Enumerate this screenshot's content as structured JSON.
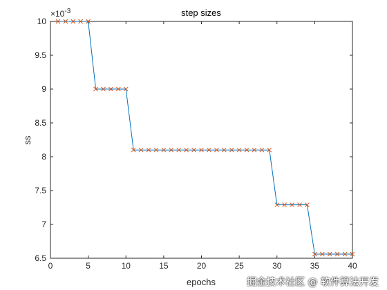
{
  "watermark": "掘金技术社区 @ 软件算法开发",
  "chart_data": {
    "type": "line",
    "title": "step sizes",
    "xlabel": "epochs",
    "ylabel": "ss",
    "y_exponent_label": "×10",
    "y_exponent_power": "-3",
    "xlim": [
      0,
      40
    ],
    "ylim": [
      6.5,
      10
    ],
    "xticks": [
      0,
      5,
      10,
      15,
      20,
      25,
      30,
      35,
      40
    ],
    "yticks": [
      6.5,
      7,
      7.5,
      8,
      8.5,
      9,
      9.5,
      10
    ],
    "grid": false,
    "line_color": "#0072bd",
    "marker_color": "#d95319",
    "marker": "x",
    "series": [
      {
        "x": [
          1,
          2,
          3,
          4,
          5,
          6,
          7,
          8,
          9,
          10,
          11,
          12,
          13,
          14,
          15,
          16,
          17,
          18,
          19,
          20,
          21,
          22,
          23,
          24,
          25,
          26,
          27,
          28,
          29,
          30,
          31,
          32,
          33,
          34,
          35,
          36,
          37,
          38,
          39,
          40
        ],
        "values": [
          10,
          10,
          10,
          10,
          10,
          9,
          9,
          9,
          9,
          9,
          8.1,
          8.1,
          8.1,
          8.1,
          8.1,
          8.1,
          8.1,
          8.1,
          8.1,
          8.1,
          8.1,
          8.1,
          8.1,
          8.1,
          8.1,
          8.1,
          8.1,
          8.1,
          8.1,
          7.29,
          7.29,
          7.29,
          7.29,
          7.29,
          6.561,
          6.561,
          6.561,
          6.561,
          6.561,
          6.561
        ]
      }
    ]
  }
}
